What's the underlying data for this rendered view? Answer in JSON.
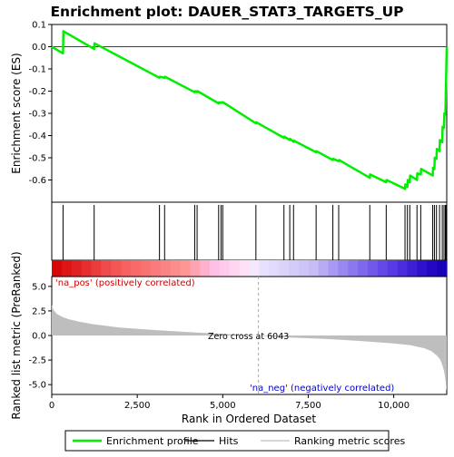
{
  "chart_data": {
    "type": "line",
    "title": "Enrichment plot: DAUER_STAT3_TARGETS_UP",
    "top_panel": {
      "ylabel": "Enrichment score (ES)",
      "ylim": [
        -0.7,
        0.1
      ],
      "yticks": [
        0.1,
        0.0,
        -0.1,
        -0.2,
        -0.3,
        -0.4,
        -0.5,
        -0.6
      ],
      "ytick_labels": [
        "0.1",
        "0.0",
        "-0.1",
        "-0.2",
        "-0.3",
        "-0.4",
        "-0.5",
        "-0.6"
      ],
      "series": [
        {
          "name": "Enrichment profile",
          "color": "#00ee00",
          "x": [
            0,
            330,
            340,
            1240,
            1250,
            3150,
            3160,
            3300,
            3310,
            4180,
            4190,
            4250,
            4260,
            4880,
            4890,
            4950,
            4960,
            5000,
            5010,
            5970,
            5980,
            6790,
            6800,
            6960,
            6970,
            7070,
            7080,
            7730,
            7740,
            8220,
            8230,
            8390,
            8400,
            9300,
            9310,
            9780,
            9790,
            10330,
            10340,
            10400,
            10410,
            10470,
            10480,
            10680,
            10690,
            10790,
            10800,
            11140,
            11150,
            11190,
            11200,
            11250,
            11260,
            11340,
            11350,
            11420,
            11430,
            11470,
            11480,
            11510,
            11520,
            11535,
            11550
          ],
          "y": [
            0.0,
            -0.03,
            0.07,
            -0.01,
            0.015,
            -0.14,
            -0.135,
            -0.14,
            -0.135,
            -0.205,
            -0.2,
            -0.205,
            -0.2,
            -0.255,
            -0.25,
            -0.253,
            -0.25,
            -0.253,
            -0.25,
            -0.345,
            -0.34,
            -0.41,
            -0.405,
            -0.42,
            -0.415,
            -0.428,
            -0.423,
            -0.475,
            -0.47,
            -0.51,
            -0.505,
            -0.515,
            -0.51,
            -0.59,
            -0.575,
            -0.61,
            -0.6,
            -0.64,
            -0.62,
            -0.63,
            -0.6,
            -0.61,
            -0.58,
            -0.6,
            -0.57,
            -0.575,
            -0.55,
            -0.58,
            -0.545,
            -0.55,
            -0.5,
            -0.505,
            -0.46,
            -0.47,
            -0.42,
            -0.43,
            -0.36,
            -0.365,
            -0.3,
            -0.305,
            -0.22,
            -0.13,
            0.0
          ]
        }
      ]
    },
    "hits": {
      "name": "Hits",
      "positions": [
        330,
        1240,
        3150,
        3300,
        4180,
        4250,
        4880,
        4950,
        5000,
        5970,
        6790,
        6960,
        7070,
        7730,
        8220,
        8390,
        9300,
        9780,
        10330,
        10400,
        10470,
        10680,
        10790,
        11140,
        11190,
        11250,
        11340,
        11420,
        11470,
        11510,
        11535
      ]
    },
    "bottom_panel": {
      "xlabel": "Rank in Ordered Dataset",
      "ylabel": "Ranked list metric (PreRanked)",
      "xlim": [
        0,
        11550
      ],
      "ylim": [
        -6,
        6
      ],
      "xticks": [
        0,
        2500,
        5000,
        7500,
        10000
      ],
      "xtick_labels": [
        "0",
        "2,500",
        "5,000",
        "7,500",
        "10,000"
      ],
      "yticks": [
        5.0,
        2.5,
        0.0,
        -2.5,
        -5.0
      ],
      "ytick_labels": [
        "5.0",
        "2.5",
        "0.0",
        "-2.5",
        "-5.0"
      ],
      "metric_x": [
        0,
        50,
        150,
        300,
        500,
        800,
        1200,
        2000,
        3000,
        4000,
        5000,
        6043,
        7000,
        8000,
        9000,
        10000,
        10500,
        10900,
        11100,
        11250,
        11350,
        11420,
        11470,
        11500,
        11520,
        11540,
        11550
      ],
      "metric_y": [
        3.1,
        2.6,
        2.2,
        1.9,
        1.65,
        1.4,
        1.15,
        0.8,
        0.55,
        0.35,
        0.17,
        0.0,
        -0.2,
        -0.35,
        -0.55,
        -0.8,
        -1.0,
        -1.3,
        -1.6,
        -2.0,
        -2.4,
        -3.0,
        -3.6,
        -4.2,
        -4.8,
        -5.4,
        -5.6
      ],
      "zero_cross_label": "Zero cross at 6043",
      "zero_cross_x": 6043,
      "pos_label": "'na_pos' (positively correlated)",
      "neg_label": "'na_neg' (negatively correlated)"
    },
    "legend": {
      "placement": "bottom",
      "entries": [
        {
          "label": "Enrichment profile",
          "color": "#00ee00"
        },
        {
          "label": "Hits",
          "color": "#000000"
        },
        {
          "label": "Ranking metric scores",
          "color": "#bebebe"
        }
      ]
    }
  }
}
